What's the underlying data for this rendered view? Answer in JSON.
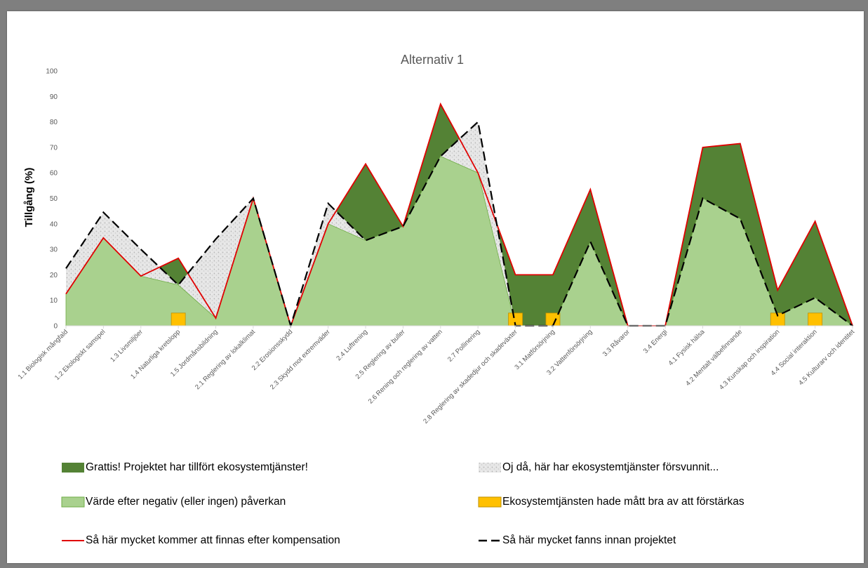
{
  "chart_data": {
    "type": "area",
    "title": "Alternativ 1",
    "ylabel": "Tillgång (%)",
    "xlabel": "",
    "ylim": [
      0,
      100
    ],
    "yticks": [
      0,
      10,
      20,
      30,
      40,
      50,
      60,
      70,
      80,
      90,
      100
    ],
    "grid": false,
    "legend_position": "bottom",
    "categories": [
      "1.1 Biologisk mångfald",
      "1.2 Ekologiskt samspel",
      "1.3 Livsmiljöer",
      "1.4 Naturliga kretslopp",
      "1.5 Jordmånsbildning",
      "2.1 Reglering av lokalklimat",
      "2.2 Erosionsskydd",
      "2.3 Skydd mot extremväder",
      "2.4 Luftrening",
      "2.5 Reglering av buller",
      "2.6 Rening och reglering av vatten",
      "2.7 Pollinering",
      "2.8 Reglering av skadedjur och skadeväxter",
      "3.1 Matförsörjning",
      "3.2 Vattenförsörjning",
      "3.3 Råvaror",
      "3.4 Energi",
      "4.1 Fysisk hälsa",
      "4.2 Mentalt välbefinnande",
      "4.3 Kunskap och inspiration",
      "4.4 Social interaktion",
      "4.5 Kulturarv och identitet"
    ],
    "series": [
      {
        "name": "Så här mycket kommer att finnas efter kompensation",
        "style": "line-red",
        "values": [
          12.5,
          34.5,
          19.5,
          26.5,
          3,
          50,
          0,
          40,
          63.5,
          39,
          87,
          60,
          20,
          20,
          53.5,
          0,
          0,
          70,
          71.5,
          14,
          41,
          0
        ]
      },
      {
        "name": "Så här mycket fanns innan projektet",
        "style": "dashed-black",
        "values": [
          22.5,
          44.5,
          30,
          16,
          34,
          50,
          0,
          48,
          33.5,
          39,
          66.5,
          80,
          0,
          0,
          33,
          0,
          0,
          50,
          42,
          4,
          11,
          0
        ]
      },
      {
        "name": "Värde efter negativ (eller ingen) påverkan",
        "style": "fill-lightgreen",
        "values": [
          12.5,
          34.5,
          19.5,
          16,
          3,
          50,
          0,
          40,
          33.5,
          39,
          66.5,
          60,
          0,
          0,
          33,
          0,
          0,
          50,
          42,
          4,
          11,
          0
        ]
      },
      {
        "name": "Ekosystemtjänsten hade mått bra av att förstärkas",
        "style": "markers-orange",
        "values": [
          0,
          0,
          0,
          5,
          0,
          0,
          0,
          0,
          0,
          0,
          0,
          0,
          5,
          5,
          0,
          0,
          0,
          0,
          0,
          5,
          5,
          0
        ]
      }
    ],
    "legend": [
      {
        "key": "gain",
        "label": "Grattis! Projektet har tillfört ekosystemtjänster!"
      },
      {
        "key": "loss",
        "label": "Oj då, här har ekosystemtjänster försvunnit..."
      },
      {
        "key": "after",
        "label": "Värde efter negativ (eller ingen) påverkan"
      },
      {
        "key": "boost",
        "label": "Ekosystemtjänsten hade mått bra av att förstärkas"
      },
      {
        "key": "comp",
        "label": "Så här mycket kommer att finnas efter kompensation"
      },
      {
        "key": "before",
        "label": "Så här mycket fanns innan projektet"
      }
    ],
    "colors": {
      "gain": "#548235",
      "after": "#a9d18e",
      "after_edge": "#70ad47",
      "boost": "#ffc000",
      "boost_edge": "#bf9000",
      "comp": "#e00000",
      "before": "#000000",
      "loss": "#d9d9d9"
    }
  }
}
